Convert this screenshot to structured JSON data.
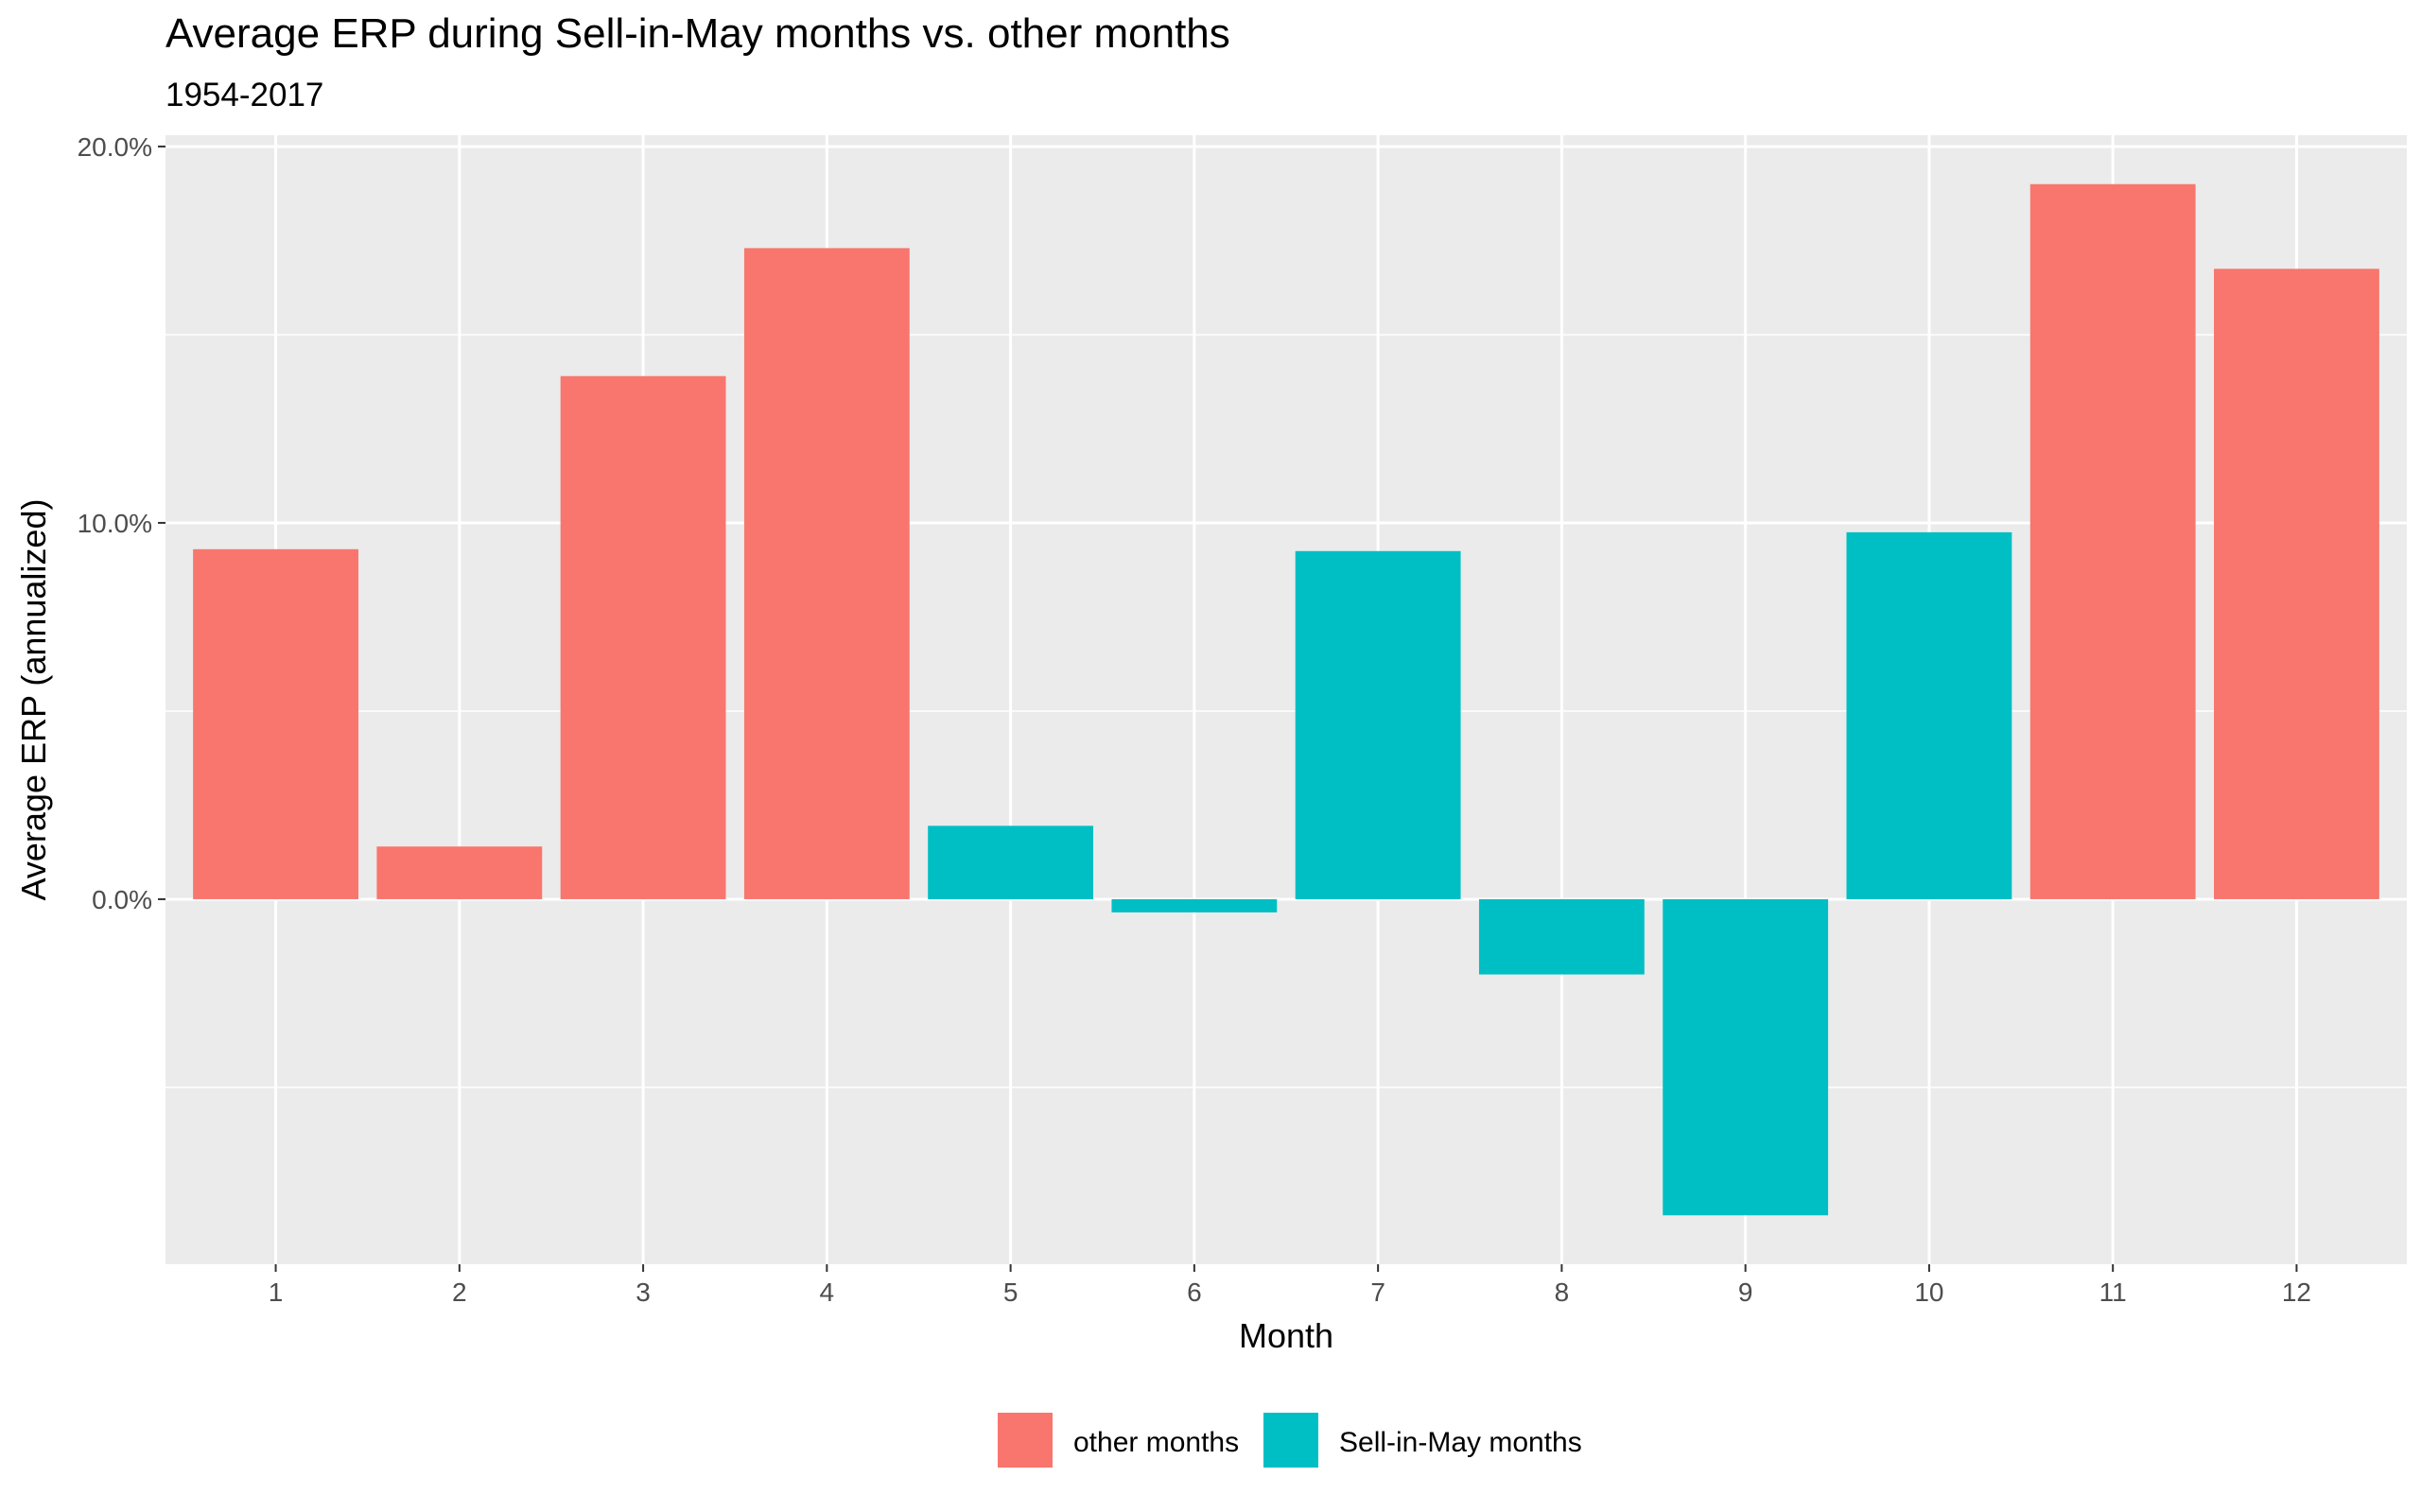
{
  "chart_data": {
    "type": "bar",
    "title": "Average ERP during Sell-in-May months vs. other months",
    "subtitle": "1954-2017",
    "xlabel": "Month",
    "ylabel": "Average ERP (annualized)",
    "categories": [
      "1",
      "2",
      "3",
      "4",
      "5",
      "6",
      "7",
      "8",
      "9",
      "10",
      "11",
      "12"
    ],
    "values": [
      9.3,
      1.4,
      13.9,
      17.3,
      1.95,
      -0.35,
      9.25,
      -2.0,
      -8.4,
      9.75,
      19.0,
      16.75
    ],
    "groups": [
      "other months",
      "other months",
      "other months",
      "other months",
      "Sell-in-May months",
      "Sell-in-May months",
      "Sell-in-May months",
      "Sell-in-May months",
      "Sell-in-May months",
      "Sell-in-May months",
      "other months",
      "other months"
    ],
    "ylim": [
      -9.7,
      20.3
    ],
    "y_ticks": [
      0,
      10,
      20
    ],
    "y_tick_labels": [
      "0.0%",
      "10.0%",
      "20.0%"
    ],
    "grid": true,
    "legend": {
      "position": "bottom",
      "entries": [
        {
          "name": "other months",
          "color": "#F8766D"
        },
        {
          "name": "Sell-in-May months",
          "color": "#00BFC4"
        }
      ]
    },
    "colors": {
      "other months": "#F8766D",
      "Sell-in-May months": "#00BFC4",
      "panel_background": "#EBEBEB",
      "grid": "#FFFFFF"
    }
  }
}
